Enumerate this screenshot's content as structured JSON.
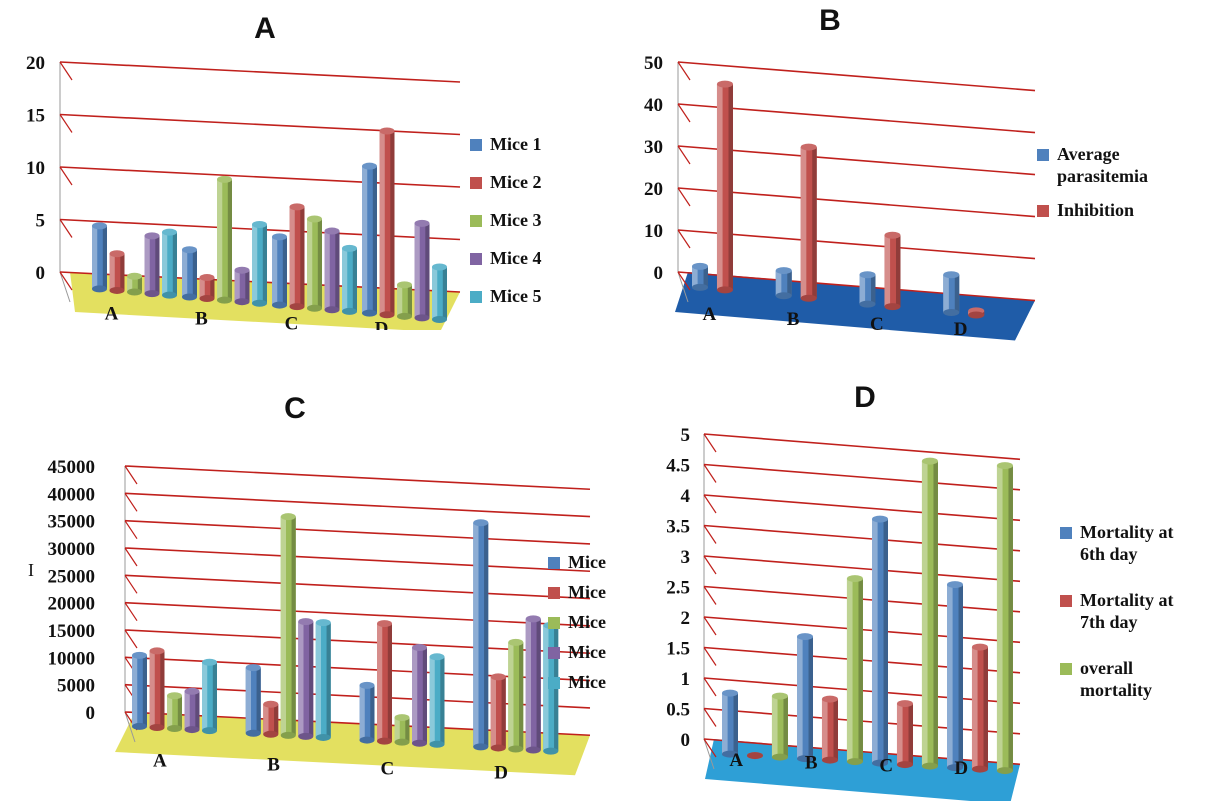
{
  "chart_data": [
    {
      "type": "bar",
      "title": "A",
      "categories": [
        "A",
        "B",
        "C",
        "D"
      ],
      "ylim": [
        0,
        20
      ],
      "yticks": [
        "0",
        "5",
        "10",
        "15",
        "20"
      ],
      "series": [
        {
          "name": "Mice 1",
          "color": "#4f81bd",
          "values": [
            6,
            4.5,
            6.5,
            14
          ]
        },
        {
          "name": "Mice 2",
          "color": "#c0504d",
          "values": [
            3.5,
            2,
            9.5,
            17.5
          ]
        },
        {
          "name": "Mice 3",
          "color": "#9bbb59",
          "values": [
            1.5,
            11.5,
            8.5,
            3
          ]
        },
        {
          "name": "Mice 4",
          "color": "#8064a2",
          "values": [
            5.5,
            3,
            7.5,
            9
          ]
        },
        {
          "name": "Mice 5",
          "color": "#4bacc6",
          "values": [
            6,
            7.5,
            6,
            5
          ]
        }
      ],
      "floor_color": "#e3e060",
      "grid": true,
      "legend": "right"
    },
    {
      "type": "bar",
      "title": "B",
      "categories": [
        "A",
        "B",
        "C",
        "D"
      ],
      "ylim": [
        0,
        50
      ],
      "yticks": [
        "0",
        "10",
        "20",
        "30",
        "40",
        "50"
      ],
      "series": [
        {
          "name": "Average parasitemia",
          "color": "#4f81bd",
          "values": [
            5,
            6,
            7,
            9
          ]
        },
        {
          "name": "Inhibition",
          "color": "#c0504d",
          "values": [
            49,
            36,
            17,
            1
          ]
        }
      ],
      "floor_color": "#1f5ca8",
      "grid": true,
      "legend": "right"
    },
    {
      "type": "bar",
      "title": "C",
      "categories": [
        "A",
        "B",
        "C",
        "D"
      ],
      "ylim": [
        0,
        45000
      ],
      "yticks": [
        "0",
        "5000",
        "10000",
        "15000",
        "20000",
        "25000",
        "30000",
        "35000",
        "40000",
        "45000"
      ],
      "series": [
        {
          "name": "Mice",
          "color": "#4f81bd",
          "values": [
            13000,
            12000,
            10000,
            41000
          ]
        },
        {
          "name": "Mice",
          "color": "#c0504d",
          "values": [
            14000,
            5500,
            21500,
            13000
          ]
        },
        {
          "name": "Mice",
          "color": "#9bbb59",
          "values": [
            6000,
            40000,
            4500,
            19500
          ]
        },
        {
          "name": "Mice",
          "color": "#8064a2",
          "values": [
            7000,
            21000,
            17500,
            24000
          ]
        },
        {
          "name": "Mice",
          "color": "#4bacc6",
          "values": [
            12500,
            21000,
            16000,
            23000
          ]
        }
      ],
      "floor_color": "#e3e060",
      "grid": true,
      "legend": "right"
    },
    {
      "type": "bar",
      "title": "D",
      "categories": [
        "A",
        "B",
        "C",
        "D"
      ],
      "ylim": [
        0,
        5
      ],
      "yticks": [
        "0",
        "0.5",
        "1",
        "1.5",
        "2",
        "2.5",
        "3",
        "3.5",
        "4",
        "4.5",
        "5"
      ],
      "series": [
        {
          "name": "Mortality at 6th day",
          "color": "#4f81bd",
          "values": [
            1,
            2,
            4,
            3
          ]
        },
        {
          "name": "Mortality at 7th day",
          "color": "#c0504d",
          "values": [
            0,
            1,
            1,
            2
          ]
        },
        {
          "name": "overall mortality",
          "color": "#9bbb59",
          "values": [
            1,
            3,
            5,
            5
          ]
        }
      ],
      "floor_color": "#2e9fd6",
      "grid": true,
      "legend": "right"
    }
  ],
  "stray_mark": "I"
}
